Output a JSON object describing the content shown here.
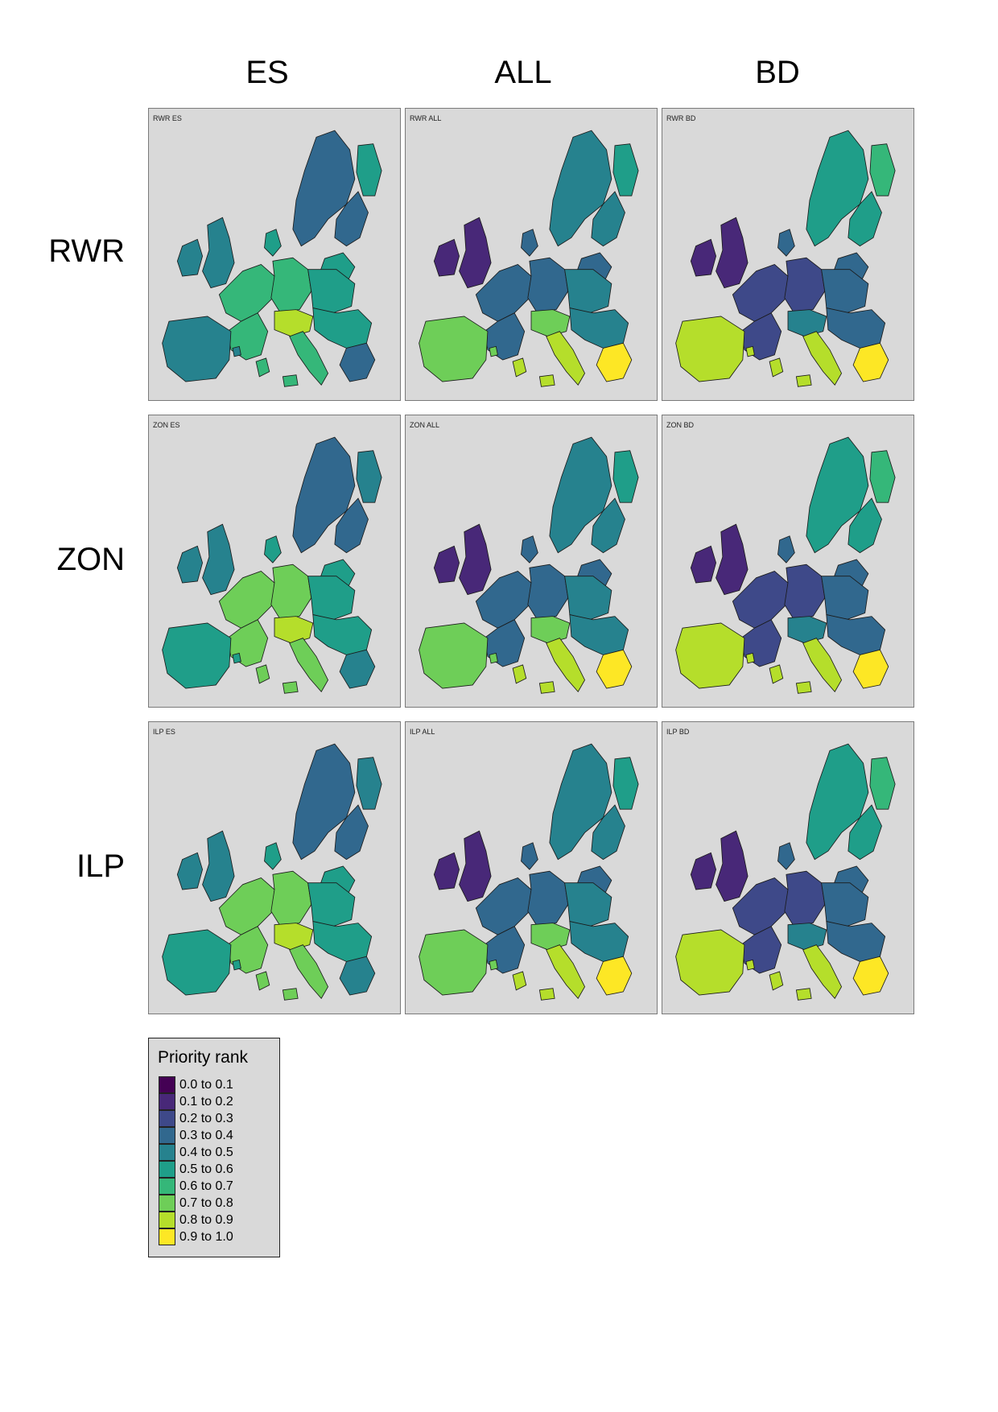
{
  "columns": [
    "ES",
    "ALL",
    "BD"
  ],
  "rows": [
    "RWR",
    "ZON",
    "ILP"
  ],
  "panels": [
    {
      "label": "RWR ES",
      "tone": 4
    },
    {
      "label": "RWR ALL",
      "tone": 3
    },
    {
      "label": "RWR BD",
      "tone": 2
    },
    {
      "label": "ZON ES",
      "tone": 5
    },
    {
      "label": "ZON ALL",
      "tone": 3
    },
    {
      "label": "ZON BD",
      "tone": 2
    },
    {
      "label": "ILP ES",
      "tone": 5
    },
    {
      "label": "ILP ALL",
      "tone": 3
    },
    {
      "label": "ILP BD",
      "tone": 2
    }
  ],
  "legend": {
    "title": "Priority rank",
    "items": [
      {
        "label": "0.0 to 0.1",
        "color": "#440154"
      },
      {
        "label": "0.1 to 0.2",
        "color": "#482878"
      },
      {
        "label": "0.2 to 0.3",
        "color": "#3e4989"
      },
      {
        "label": "0.3 to 0.4",
        "color": "#31688e"
      },
      {
        "label": "0.4 to 0.5",
        "color": "#26828e"
      },
      {
        "label": "0.5 to 0.6",
        "color": "#1f9e89"
      },
      {
        "label": "0.6 to 0.7",
        "color": "#35b779"
      },
      {
        "label": "0.7 to 0.8",
        "color": "#6ece58"
      },
      {
        "label": "0.8 to 0.9",
        "color": "#b5de2b"
      },
      {
        "label": "0.9 to 1.0",
        "color": "#fde725"
      }
    ]
  }
}
